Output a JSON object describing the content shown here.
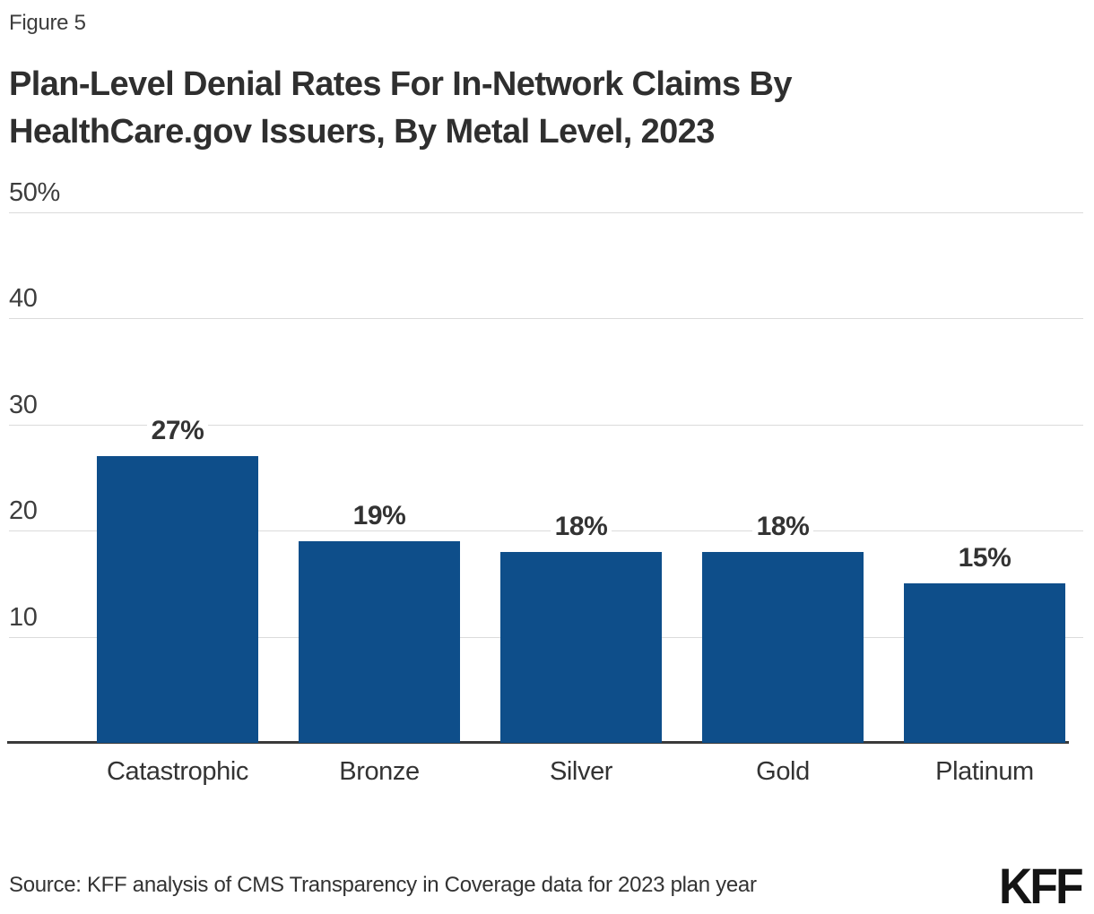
{
  "figure_label": "Figure 5",
  "title_lines": [
    "Plan-Level Denial Rates For In-Network Claims By",
    "HealthCare.gov Issuers, By Metal Level, 2023"
  ],
  "source_note": "Source: KFF analysis of CMS Transparency in Coverage data for 2023 plan year",
  "brand_logo": "KFF",
  "colors": {
    "bar": "#0E4E8A",
    "grid": "#dbdbdb",
    "baseline": "#3a3a3a",
    "text": "#333333"
  },
  "chart_data": {
    "type": "bar",
    "title": "Plan-Level Denial Rates For In-Network Claims By HealthCare.gov Issuers, By Metal Level, 2023",
    "categories": [
      "Catastrophic",
      "Bronze",
      "Silver",
      "Gold",
      "Platinum"
    ],
    "values": [
      27,
      19,
      18,
      18,
      15
    ],
    "value_labels": [
      "27%",
      "19%",
      "18%",
      "18%",
      "15%"
    ],
    "xlabel": "",
    "ylabel": "",
    "ylim": [
      0,
      50
    ],
    "yticks": [
      {
        "value": 50,
        "label": "50%"
      },
      {
        "value": 40,
        "label": "40"
      },
      {
        "value": 30,
        "label": "30"
      },
      {
        "value": 20,
        "label": "20"
      },
      {
        "value": 10,
        "label": "10"
      }
    ],
    "grid": true,
    "legend": false
  }
}
